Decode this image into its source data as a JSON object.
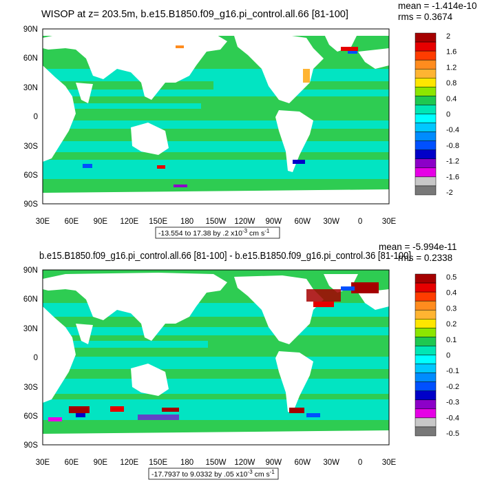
{
  "panels": [
    {
      "title": "WISOP at z= 203.5m, b.e15.B1850.f09_g16.pi_control.all.66 [81-100]",
      "mean": "mean = -1.414e-10",
      "rms": "rms = 0.3674",
      "range_label": "-13.554 to 17.38 by .2 x10",
      "range_exp": "-3",
      "range_unit": " cm s",
      "range_unit_exp": "-1",
      "colorbar_labels": [
        "2",
        "1.6",
        "1.2",
        "0.8",
        "0.4",
        "0",
        "-0.4",
        "-0.8",
        "-1.2",
        "-1.6",
        "-2"
      ]
    },
    {
      "title": "b.e15.B1850.f09_g16.pi_control.all.66 [81-100] - b.e15.B1850.f09_g16.pi_control.36 [81-100]",
      "mean": "mean = -5.994e-11",
      "rms": "rms = 0.2338",
      "range_label": "-17.7937 to 9.0332 by .05 x10",
      "range_exp": "-3",
      "range_unit": " cm s",
      "range_unit_exp": "-1",
      "colorbar_labels": [
        "0.5",
        "0.4",
        "0.3",
        "0.2",
        "0.1",
        "0",
        "-0.1",
        "-0.2",
        "-0.3",
        "-0.4",
        "-0.5"
      ]
    }
  ],
  "lon_labels": [
    "30E",
    "60E",
    "90E",
    "120E",
    "150E",
    "180",
    "150W",
    "120W",
    "90W",
    "60W",
    "30W",
    "0",
    "30E"
  ],
  "lat_labels": [
    "90N",
    "60N",
    "30N",
    "0",
    "30S",
    "60S",
    "90S"
  ],
  "colors": {
    "colorbar": [
      "#a50000",
      "#e60000",
      "#ff3c00",
      "#ff8c1e",
      "#ffb432",
      "#ffe600",
      "#8ce600",
      "#1ec850",
      "#00e6b4",
      "#00ffff",
      "#00c8ff",
      "#008cff",
      "#0050ff",
      "#0000c8",
      "#8c00c8",
      "#e600e6",
      "#c8c8c8",
      "#787878"
    ],
    "ocean_green": "#2ecc52",
    "ocean_cyan": "#00e6c8",
    "land": "#ffffff"
  }
}
